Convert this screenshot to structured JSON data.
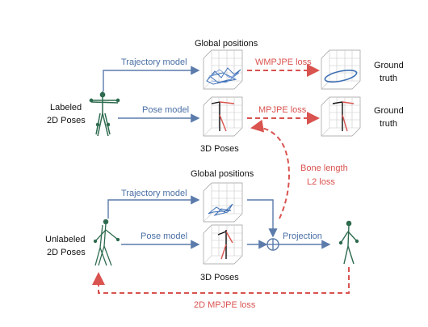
{
  "colors": {
    "blue": "#4a6fa5",
    "red": "#d9534f",
    "skeleton": "#2e6b4f",
    "text": "#111111"
  },
  "top": {
    "input_label_line1": "Labeled",
    "input_label_line2": "2D Poses",
    "global_positions_title": "Global positions",
    "trajectory_model": "Trajectory model",
    "pose_model": "Pose model",
    "wmpjpe_loss": "WMPJPE loss",
    "mpjpe_loss": "MPJPE loss",
    "ground_truth_1_line1": "Ground",
    "ground_truth_1_line2": "truth",
    "ground_truth_2_line1": "Ground",
    "ground_truth_2_line2": "truth",
    "poses_3d_title": "3D Poses"
  },
  "middle": {
    "bone_length_line1": "Bone length",
    "bone_length_line2": "L2 loss"
  },
  "bottom": {
    "input_label_line1": "Unlabeled",
    "input_label_line2": "2D Poses",
    "global_positions_title": "Global positions",
    "trajectory_model": "Trajectory model",
    "pose_model": "Pose model",
    "projection": "Projection",
    "poses_3d_title": "3D Poses",
    "mpjpe_2d_loss": "2D MPJPE loss",
    "sum_symbol": "+"
  }
}
